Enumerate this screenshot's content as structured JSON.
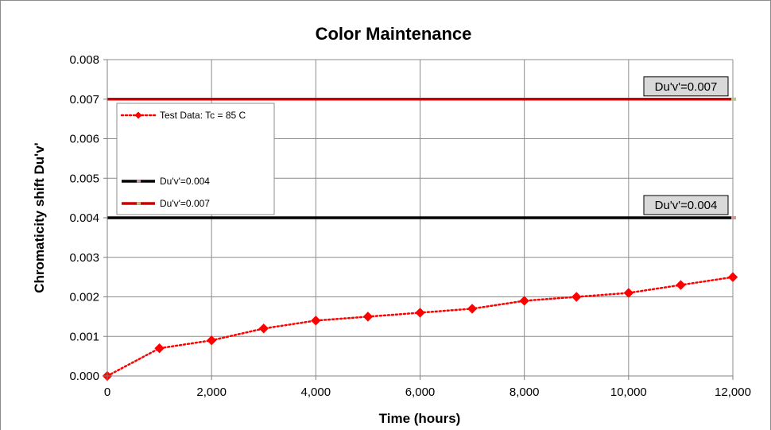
{
  "chart_data": {
    "type": "line",
    "title": "Color Maintenance",
    "xlabel": "Time (hours)",
    "ylabel": "Chromaticity shift Du'v'",
    "xlim": [
      0,
      12000
    ],
    "ylim": [
      0,
      0.008
    ],
    "x_ticks": [
      "0",
      "2,000",
      "4,000",
      "6,000",
      "8,000",
      "10,000",
      "12,000"
    ],
    "y_ticks": [
      "0.000",
      "0.001",
      "0.002",
      "0.003",
      "0.004",
      "0.005",
      "0.006",
      "0.007",
      "0.008"
    ],
    "grid": true,
    "legend_position": "top-left",
    "series": [
      {
        "name": "Test Data: Tc = 85 C",
        "color": "#ff0000",
        "style": "dotted-diamond",
        "x": [
          0,
          1000,
          2000,
          3000,
          4000,
          5000,
          6000,
          7000,
          8000,
          9000,
          10000,
          11000,
          12000
        ],
        "y": [
          0.0,
          0.0007,
          0.0009,
          0.0012,
          0.0014,
          0.0015,
          0.0016,
          0.0017,
          0.0019,
          0.002,
          0.0021,
          0.0023,
          0.0025
        ]
      },
      {
        "name": "Du'v'=0.004",
        "color": "#000000",
        "style": "solid-thick",
        "x": [
          0,
          12000
        ],
        "y": [
          0.004,
          0.004
        ]
      },
      {
        "name": "Du'v'=0.007",
        "color": "#cc0000",
        "style": "solid-thick",
        "x": [
          0,
          12000
        ],
        "y": [
          0.007,
          0.007
        ]
      }
    ],
    "annotations": [
      {
        "text": "Du'v'=0.007",
        "y": 0.007
      },
      {
        "text": "Du'v'=0.004",
        "y": 0.004
      }
    ]
  }
}
